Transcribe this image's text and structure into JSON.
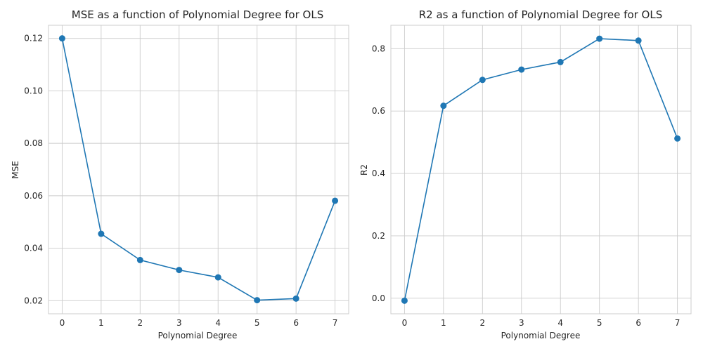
{
  "chart_data": [
    {
      "type": "line",
      "title": "MSE as a function of Polynomial Degree for OLS",
      "xlabel": "Polynomial Degree",
      "ylabel": "MSE",
      "x": [
        0,
        1,
        2,
        3,
        4,
        5,
        6,
        7
      ],
      "series": [
        {
          "values": [
            0.12,
            0.0455,
            0.0355,
            0.0317,
            0.0289,
            0.0202,
            0.0208,
            0.0581
          ],
          "color": "#1f77b4",
          "marker": "circle"
        }
      ],
      "xticks": [
        0,
        1,
        2,
        3,
        4,
        5,
        6,
        7
      ],
      "xtick_labels": [
        "0",
        "1",
        "2",
        "3",
        "4",
        "5",
        "6",
        "7"
      ],
      "yticks": [
        0.02,
        0.04,
        0.06,
        0.08,
        0.1,
        0.12
      ],
      "ytick_labels": [
        "0.02",
        "0.04",
        "0.06",
        "0.08",
        "0.10",
        "0.12"
      ],
      "xlim": [
        -0.35,
        7.35
      ],
      "ylim": [
        0.015,
        0.125
      ],
      "grid": true,
      "legend": "none"
    },
    {
      "type": "line",
      "title": "R2 as a function of Polynomial Degree for OLS",
      "xlabel": "Polynomial Degree",
      "ylabel": "R2",
      "x": [
        0,
        1,
        2,
        3,
        4,
        5,
        6,
        7
      ],
      "series": [
        {
          "values": [
            -0.008,
            0.617,
            0.7,
            0.733,
            0.757,
            0.832,
            0.826,
            0.512
          ],
          "color": "#1f77b4",
          "marker": "circle"
        }
      ],
      "xticks": [
        0,
        1,
        2,
        3,
        4,
        5,
        6,
        7
      ],
      "xtick_labels": [
        "0",
        "1",
        "2",
        "3",
        "4",
        "5",
        "6",
        "7"
      ],
      "yticks": [
        0.0,
        0.2,
        0.4,
        0.6,
        0.8
      ],
      "ytick_labels": [
        "0.0",
        "0.2",
        "0.4",
        "0.6",
        "0.8"
      ],
      "xlim": [
        -0.35,
        7.35
      ],
      "ylim": [
        -0.05,
        0.875
      ],
      "grid": true,
      "legend": "none"
    }
  ]
}
